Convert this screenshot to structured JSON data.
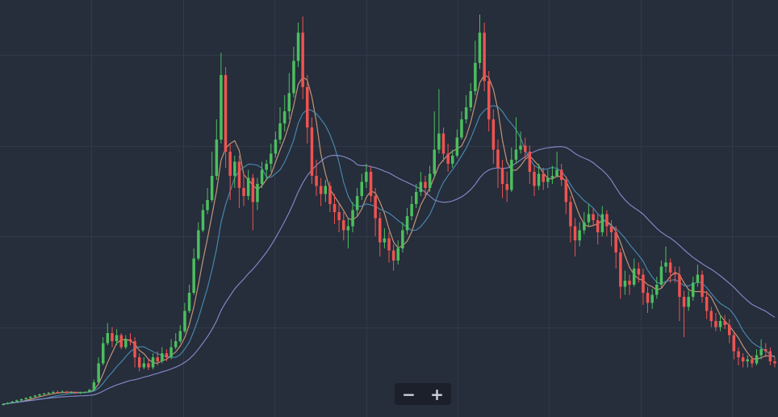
{
  "chart_data": {
    "type": "candlestick",
    "title": "",
    "grid": true,
    "y_range": [
      0,
      100
    ],
    "up_color": "#4bbf5e",
    "down_color": "#ef5350",
    "background": "#262d3b",
    "grid_color": "#323a4a",
    "candles": [
      {
        "o": 1.2,
        "c": 1.4,
        "h": 1.6,
        "l": 1.0
      },
      {
        "o": 1.4,
        "c": 1.7,
        "h": 1.9,
        "l": 1.3
      },
      {
        "o": 1.7,
        "c": 2.0,
        "h": 2.2,
        "l": 1.6
      },
      {
        "o": 2.0,
        "c": 2.3,
        "h": 2.5,
        "l": 1.9
      },
      {
        "o": 2.3,
        "c": 2.6,
        "h": 2.8,
        "l": 2.2
      },
      {
        "o": 2.6,
        "c": 2.9,
        "h": 3.1,
        "l": 2.5
      },
      {
        "o": 2.9,
        "c": 3.2,
        "h": 3.4,
        "l": 2.8
      },
      {
        "o": 3.2,
        "c": 3.5,
        "h": 3.7,
        "l": 3.1
      },
      {
        "o": 3.5,
        "c": 3.8,
        "h": 4.0,
        "l": 3.4
      },
      {
        "o": 3.8,
        "c": 4.0,
        "h": 4.2,
        "l": 3.7
      },
      {
        "o": 4.0,
        "c": 4.2,
        "h": 4.4,
        "l": 3.9
      },
      {
        "o": 4.2,
        "c": 4.4,
        "h": 4.7,
        "l": 4.1
      },
      {
        "o": 4.4,
        "c": 4.3,
        "h": 4.8,
        "l": 4.1
      },
      {
        "o": 4.3,
        "c": 4.5,
        "h": 4.8,
        "l": 4.2
      },
      {
        "o": 4.5,
        "c": 4.2,
        "h": 4.7,
        "l": 4.0
      },
      {
        "o": 4.2,
        "c": 4.4,
        "h": 4.6,
        "l": 4.0
      },
      {
        "o": 4.4,
        "c": 4.1,
        "h": 4.5,
        "l": 3.9
      },
      {
        "o": 4.1,
        "c": 4.3,
        "h": 4.5,
        "l": 3.9
      },
      {
        "o": 4.3,
        "c": 4.4,
        "h": 4.6,
        "l": 4.1
      },
      {
        "o": 4.4,
        "c": 4.9,
        "h": 5.2,
        "l": 4.3
      },
      {
        "o": 4.9,
        "c": 6.8,
        "h": 7.5,
        "l": 4.8
      },
      {
        "o": 6.8,
        "c": 11.5,
        "h": 13.0,
        "l": 6.5
      },
      {
        "o": 11.5,
        "c": 16.5,
        "h": 18.0,
        "l": 11.0
      },
      {
        "o": 16.5,
        "c": 19.0,
        "h": 21.5,
        "l": 16.0
      },
      {
        "o": 19.0,
        "c": 17.0,
        "h": 20.5,
        "l": 15.5
      },
      {
        "o": 17.0,
        "c": 18.5,
        "h": 20.0,
        "l": 16.0
      },
      {
        "o": 18.5,
        "c": 15.5,
        "h": 19.0,
        "l": 15.0
      },
      {
        "o": 15.5,
        "c": 17.5,
        "h": 18.5,
        "l": 15.0
      },
      {
        "o": 17.5,
        "c": 17.0,
        "h": 19.0,
        "l": 16.0
      },
      {
        "o": 17.0,
        "c": 13.0,
        "h": 18.0,
        "l": 10.5
      },
      {
        "o": 13.0,
        "c": 10.5,
        "h": 14.0,
        "l": 9.5
      },
      {
        "o": 10.5,
        "c": 11.5,
        "h": 13.0,
        "l": 10.0
      },
      {
        "o": 11.5,
        "c": 10.5,
        "h": 12.5,
        "l": 9.8
      },
      {
        "o": 10.5,
        "c": 13.0,
        "h": 14.0,
        "l": 10.0
      },
      {
        "o": 13.0,
        "c": 12.0,
        "h": 14.5,
        "l": 11.0
      },
      {
        "o": 12.0,
        "c": 14.0,
        "h": 15.5,
        "l": 11.5
      },
      {
        "o": 14.0,
        "c": 13.0,
        "h": 15.0,
        "l": 12.0
      },
      {
        "o": 13.0,
        "c": 15.5,
        "h": 17.5,
        "l": 12.5
      },
      {
        "o": 15.5,
        "c": 17.0,
        "h": 19.0,
        "l": 15.0
      },
      {
        "o": 17.0,
        "c": 19.5,
        "h": 21.0,
        "l": 16.5
      },
      {
        "o": 19.5,
        "c": 24.5,
        "h": 26.5,
        "l": 19.0
      },
      {
        "o": 24.5,
        "c": 29.0,
        "h": 31.0,
        "l": 24.0
      },
      {
        "o": 29.0,
        "c": 37.5,
        "h": 40.0,
        "l": 28.5
      },
      {
        "o": 37.5,
        "c": 44.5,
        "h": 46.5,
        "l": 37.0
      },
      {
        "o": 44.5,
        "c": 49.5,
        "h": 51.0,
        "l": 44.0
      },
      {
        "o": 49.5,
        "c": 52.0,
        "h": 55.0,
        "l": 48.5
      },
      {
        "o": 52.0,
        "c": 58.0,
        "h": 64.0,
        "l": 51.5
      },
      {
        "o": 58.0,
        "c": 67.0,
        "h": 72.0,
        "l": 57.0
      },
      {
        "o": 67.0,
        "c": 83.0,
        "h": 88.5,
        "l": 66.0
      },
      {
        "o": 83.0,
        "c": 64.0,
        "h": 85.0,
        "l": 60.0
      },
      {
        "o": 64.0,
        "c": 58.0,
        "h": 66.0,
        "l": 52.0
      },
      {
        "o": 58.0,
        "c": 61.5,
        "h": 63.0,
        "l": 55.0
      },
      {
        "o": 61.5,
        "c": 55.0,
        "h": 63.0,
        "l": 50.0
      },
      {
        "o": 55.0,
        "c": 53.0,
        "h": 59.0,
        "l": 50.5
      },
      {
        "o": 53.0,
        "c": 57.5,
        "h": 59.5,
        "l": 52.0
      },
      {
        "o": 57.5,
        "c": 51.5,
        "h": 58.5,
        "l": 44.5
      },
      {
        "o": 51.5,
        "c": 56.0,
        "h": 57.5,
        "l": 49.5
      },
      {
        "o": 56.0,
        "c": 59.5,
        "h": 61.5,
        "l": 55.0
      },
      {
        "o": 59.5,
        "c": 61.0,
        "h": 62.0,
        "l": 57.0
      },
      {
        "o": 61.0,
        "c": 63.5,
        "h": 66.0,
        "l": 59.0
      },
      {
        "o": 63.5,
        "c": 67.0,
        "h": 69.0,
        "l": 62.5
      },
      {
        "o": 67.0,
        "c": 71.0,
        "h": 75.0,
        "l": 66.0
      },
      {
        "o": 71.0,
        "c": 74.0,
        "h": 78.0,
        "l": 69.0
      },
      {
        "o": 74.0,
        "c": 78.5,
        "h": 83.5,
        "l": 72.0
      },
      {
        "o": 78.5,
        "c": 86.5,
        "h": 90.0,
        "l": 77.5
      },
      {
        "o": 86.5,
        "c": 93.5,
        "h": 96.0,
        "l": 85.0
      },
      {
        "o": 93.5,
        "c": 80.0,
        "h": 97.5,
        "l": 77.0
      },
      {
        "o": 80.0,
        "c": 70.0,
        "h": 83.0,
        "l": 66.0
      },
      {
        "o": 70.0,
        "c": 58.0,
        "h": 72.5,
        "l": 56.0
      },
      {
        "o": 58.0,
        "c": 55.5,
        "h": 62.0,
        "l": 53.0
      },
      {
        "o": 55.5,
        "c": 53.5,
        "h": 57.5,
        "l": 50.5
      },
      {
        "o": 53.5,
        "c": 55.5,
        "h": 57.0,
        "l": 51.5
      },
      {
        "o": 55.5,
        "c": 51.0,
        "h": 56.5,
        "l": 49.0
      },
      {
        "o": 51.0,
        "c": 49.0,
        "h": 53.5,
        "l": 46.0
      },
      {
        "o": 49.0,
        "c": 47.0,
        "h": 51.0,
        "l": 44.0
      },
      {
        "o": 47.0,
        "c": 44.5,
        "h": 49.0,
        "l": 42.0
      },
      {
        "o": 44.5,
        "c": 45.5,
        "h": 47.5,
        "l": 40.0
      },
      {
        "o": 45.5,
        "c": 49.5,
        "h": 51.5,
        "l": 44.0
      },
      {
        "o": 49.5,
        "c": 53.0,
        "h": 55.0,
        "l": 48.0
      },
      {
        "o": 53.0,
        "c": 56.5,
        "h": 58.5,
        "l": 52.0
      },
      {
        "o": 56.5,
        "c": 59.0,
        "h": 61.0,
        "l": 55.0
      },
      {
        "o": 59.0,
        "c": 53.0,
        "h": 60.5,
        "l": 51.5
      },
      {
        "o": 53.0,
        "c": 47.5,
        "h": 55.0,
        "l": 43.0
      },
      {
        "o": 47.5,
        "c": 41.5,
        "h": 49.0,
        "l": 38.0
      },
      {
        "o": 41.5,
        "c": 42.5,
        "h": 45.0,
        "l": 40.0
      },
      {
        "o": 42.5,
        "c": 39.5,
        "h": 44.0,
        "l": 36.5
      },
      {
        "o": 39.5,
        "c": 37.0,
        "h": 41.0,
        "l": 34.5
      },
      {
        "o": 37.0,
        "c": 40.0,
        "h": 42.0,
        "l": 36.0
      },
      {
        "o": 40.0,
        "c": 44.5,
        "h": 46.5,
        "l": 39.0
      },
      {
        "o": 44.5,
        "c": 48.0,
        "h": 50.0,
        "l": 43.5
      },
      {
        "o": 48.0,
        "c": 51.0,
        "h": 53.0,
        "l": 47.0
      },
      {
        "o": 51.0,
        "c": 54.0,
        "h": 56.0,
        "l": 50.0
      },
      {
        "o": 54.0,
        "c": 56.5,
        "h": 59.0,
        "l": 53.0
      },
      {
        "o": 56.5,
        "c": 55.0,
        "h": 58.0,
        "l": 52.5
      },
      {
        "o": 55.0,
        "c": 58.5,
        "h": 60.5,
        "l": 54.0
      },
      {
        "o": 58.5,
        "c": 64.5,
        "h": 74.0,
        "l": 57.5
      },
      {
        "o": 64.5,
        "c": 68.5,
        "h": 79.5,
        "l": 63.5
      },
      {
        "o": 68.5,
        "c": 63.5,
        "h": 70.0,
        "l": 61.5
      },
      {
        "o": 63.5,
        "c": 61.0,
        "h": 66.0,
        "l": 59.0
      },
      {
        "o": 61.0,
        "c": 63.0,
        "h": 64.5,
        "l": 60.0
      },
      {
        "o": 63.0,
        "c": 67.5,
        "h": 69.5,
        "l": 62.5
      },
      {
        "o": 67.5,
        "c": 72.0,
        "h": 74.0,
        "l": 67.0
      },
      {
        "o": 72.0,
        "c": 75.0,
        "h": 78.0,
        "l": 71.0
      },
      {
        "o": 75.0,
        "c": 79.0,
        "h": 81.0,
        "l": 74.0
      },
      {
        "o": 79.0,
        "c": 86.0,
        "h": 91.5,
        "l": 78.0
      },
      {
        "o": 86.0,
        "c": 93.5,
        "h": 98.0,
        "l": 84.5
      },
      {
        "o": 93.5,
        "c": 81.5,
        "h": 96.0,
        "l": 79.0
      },
      {
        "o": 81.5,
        "c": 72.0,
        "h": 84.0,
        "l": 69.0
      },
      {
        "o": 72.0,
        "c": 64.5,
        "h": 74.5,
        "l": 61.0
      },
      {
        "o": 64.5,
        "c": 60.0,
        "h": 67.0,
        "l": 55.0
      },
      {
        "o": 60.0,
        "c": 56.0,
        "h": 62.0,
        "l": 52.5
      },
      {
        "o": 56.0,
        "c": 54.5,
        "h": 59.0,
        "l": 51.5
      },
      {
        "o": 54.5,
        "c": 62.0,
        "h": 65.0,
        "l": 54.0
      },
      {
        "o": 62.0,
        "c": 64.5,
        "h": 72.5,
        "l": 61.0
      },
      {
        "o": 64.5,
        "c": 65.5,
        "h": 69.0,
        "l": 63.5
      },
      {
        "o": 65.5,
        "c": 64.0,
        "h": 67.5,
        "l": 62.0
      },
      {
        "o": 64.0,
        "c": 59.0,
        "h": 65.5,
        "l": 56.0
      },
      {
        "o": 59.0,
        "c": 55.5,
        "h": 60.5,
        "l": 53.0
      },
      {
        "o": 55.5,
        "c": 58.5,
        "h": 61.0,
        "l": 54.5
      },
      {
        "o": 58.5,
        "c": 56.5,
        "h": 60.0,
        "l": 54.5
      },
      {
        "o": 56.5,
        "c": 57.5,
        "h": 59.5,
        "l": 55.0
      },
      {
        "o": 57.5,
        "c": 58.0,
        "h": 60.5,
        "l": 56.0
      },
      {
        "o": 58.0,
        "c": 59.5,
        "h": 64.0,
        "l": 57.5
      },
      {
        "o": 59.5,
        "c": 57.0,
        "h": 61.0,
        "l": 55.5
      },
      {
        "o": 57.0,
        "c": 51.5,
        "h": 58.0,
        "l": 48.5
      },
      {
        "o": 51.5,
        "c": 45.5,
        "h": 53.0,
        "l": 41.5
      },
      {
        "o": 45.5,
        "c": 42.0,
        "h": 47.5,
        "l": 38.0
      },
      {
        "o": 42.0,
        "c": 44.5,
        "h": 46.5,
        "l": 40.5
      },
      {
        "o": 44.5,
        "c": 46.5,
        "h": 49.0,
        "l": 43.5
      },
      {
        "o": 46.5,
        "c": 48.5,
        "h": 51.0,
        "l": 45.5
      },
      {
        "o": 48.5,
        "c": 47.0,
        "h": 50.0,
        "l": 45.5
      },
      {
        "o": 47.0,
        "c": 44.0,
        "h": 48.5,
        "l": 41.0
      },
      {
        "o": 44.0,
        "c": 48.5,
        "h": 50.5,
        "l": 43.0
      },
      {
        "o": 48.5,
        "c": 45.5,
        "h": 49.5,
        "l": 43.0
      },
      {
        "o": 45.5,
        "c": 44.0,
        "h": 47.0,
        "l": 40.5
      },
      {
        "o": 44.0,
        "c": 39.0,
        "h": 45.5,
        "l": 35.0
      },
      {
        "o": 39.0,
        "c": 30.5,
        "h": 40.0,
        "l": 27.5
      },
      {
        "o": 30.5,
        "c": 32.0,
        "h": 34.5,
        "l": 28.5
      },
      {
        "o": 32.0,
        "c": 31.0,
        "h": 33.5,
        "l": 28.5
      },
      {
        "o": 31.0,
        "c": 35.0,
        "h": 37.5,
        "l": 30.5
      },
      {
        "o": 35.0,
        "c": 33.5,
        "h": 36.5,
        "l": 31.5
      },
      {
        "o": 33.5,
        "c": 29.0,
        "h": 35.0,
        "l": 26.0
      },
      {
        "o": 29.0,
        "c": 26.5,
        "h": 30.5,
        "l": 24.0
      },
      {
        "o": 26.5,
        "c": 28.5,
        "h": 30.0,
        "l": 25.0
      },
      {
        "o": 28.5,
        "c": 31.0,
        "h": 33.0,
        "l": 27.5
      },
      {
        "o": 31.0,
        "c": 35.5,
        "h": 37.0,
        "l": 30.0
      },
      {
        "o": 35.5,
        "c": 36.5,
        "h": 40.5,
        "l": 34.0
      },
      {
        "o": 36.5,
        "c": 34.0,
        "h": 37.5,
        "l": 31.5
      },
      {
        "o": 34.0,
        "c": 33.5,
        "h": 35.5,
        "l": 31.5
      },
      {
        "o": 33.5,
        "c": 28.0,
        "h": 35.5,
        "l": 22.0
      },
      {
        "o": 28.0,
        "c": 25.5,
        "h": 29.5,
        "l": 18.0
      },
      {
        "o": 25.5,
        "c": 28.0,
        "h": 29.5,
        "l": 24.5
      },
      {
        "o": 28.0,
        "c": 31.5,
        "h": 33.0,
        "l": 27.0
      },
      {
        "o": 31.5,
        "c": 33.5,
        "h": 36.0,
        "l": 30.5
      },
      {
        "o": 33.5,
        "c": 28.0,
        "h": 34.5,
        "l": 26.5
      },
      {
        "o": 28.0,
        "c": 24.5,
        "h": 29.5,
        "l": 22.5
      },
      {
        "o": 24.5,
        "c": 22.0,
        "h": 25.5,
        "l": 20.5
      },
      {
        "o": 22.0,
        "c": 20.5,
        "h": 24.0,
        "l": 19.5
      },
      {
        "o": 20.5,
        "c": 22.0,
        "h": 23.5,
        "l": 19.5
      },
      {
        "o": 22.0,
        "c": 21.0,
        "h": 23.5,
        "l": 20.0
      },
      {
        "o": 21.0,
        "c": 18.5,
        "h": 22.5,
        "l": 16.5
      },
      {
        "o": 18.5,
        "c": 14.5,
        "h": 19.5,
        "l": 12.5
      },
      {
        "o": 14.5,
        "c": 13.0,
        "h": 15.5,
        "l": 11.0
      },
      {
        "o": 13.0,
        "c": 12.0,
        "h": 14.0,
        "l": 10.5
      },
      {
        "o": 12.0,
        "c": 12.5,
        "h": 13.5,
        "l": 10.5
      },
      {
        "o": 12.5,
        "c": 11.5,
        "h": 13.5,
        "l": 10.5
      },
      {
        "o": 11.5,
        "c": 13.5,
        "h": 15.0,
        "l": 11.0
      },
      {
        "o": 13.5,
        "c": 15.0,
        "h": 17.5,
        "l": 12.5
      },
      {
        "o": 15.0,
        "c": 14.5,
        "h": 16.5,
        "l": 13.0
      },
      {
        "o": 14.5,
        "c": 12.0,
        "h": 15.5,
        "l": 11.0
      },
      {
        "o": 12.0,
        "c": 11.5,
        "h": 13.0,
        "l": 10.5
      }
    ],
    "moving_averages": [
      {
        "period": 5,
        "color": "#d1a07c"
      },
      {
        "period": 10,
        "color": "#4a90b8"
      },
      {
        "period": 30,
        "color": "#8b8fd0"
      }
    ]
  },
  "zoom": {
    "out_label": "−",
    "in_label": "+"
  }
}
